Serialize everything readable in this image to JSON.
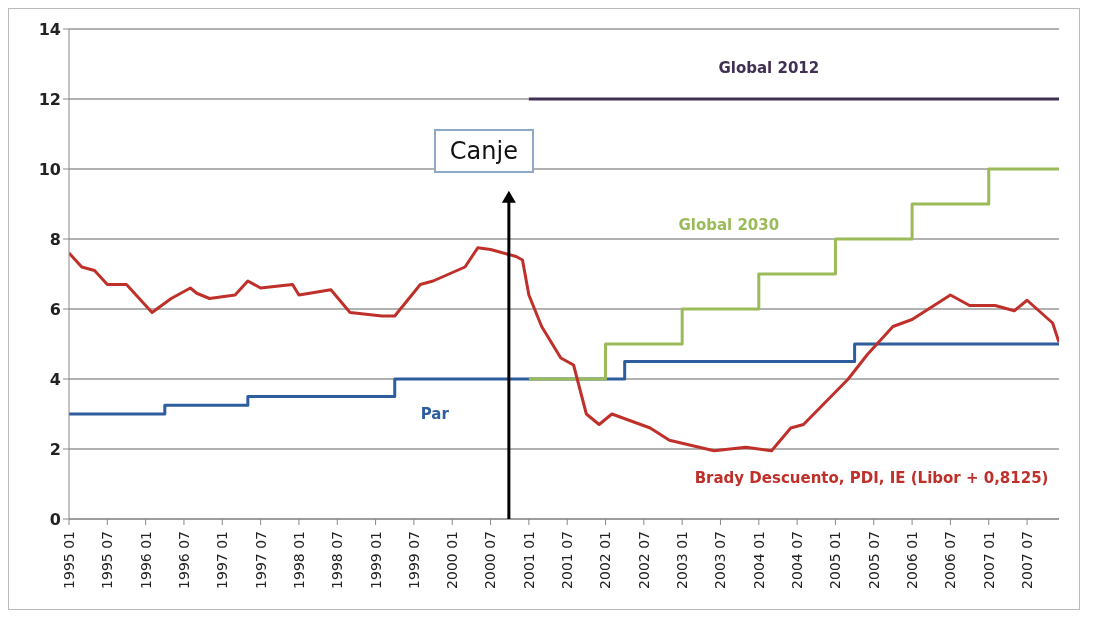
{
  "chart_data": {
    "type": "line",
    "annotations": [
      "Canje"
    ],
    "xlim": [
      "1995-01",
      "2007-12"
    ],
    "xticks": [
      {
        "value": "1995-01",
        "label": "1995 01"
      },
      {
        "value": "1995-07",
        "label": "1995 07"
      },
      {
        "value": "1996-01",
        "label": "1996 01"
      },
      {
        "value": "1996-07",
        "label": "1996 07"
      },
      {
        "value": "1997-01",
        "label": "1997 01"
      },
      {
        "value": "1997-07",
        "label": "1997 07"
      },
      {
        "value": "1998-01",
        "label": "1998 01"
      },
      {
        "value": "1998-07",
        "label": "1998 07"
      },
      {
        "value": "1999-01",
        "label": "1999 01"
      },
      {
        "value": "1999-07",
        "label": "1999 07"
      },
      {
        "value": "2000-01",
        "label": "2000 01"
      },
      {
        "value": "2000-07",
        "label": "2000 07"
      },
      {
        "value": "2001-01",
        "label": "2001 01"
      },
      {
        "value": "2001-07",
        "label": "2001 07"
      },
      {
        "value": "2002-01",
        "label": "2002 01"
      },
      {
        "value": "2002-07",
        "label": "2002 07"
      },
      {
        "value": "2003-01",
        "label": "2003 01"
      },
      {
        "value": "2003-07",
        "label": "2003 07"
      },
      {
        "value": "2004-01",
        "label": "2004 01"
      },
      {
        "value": "2004-07",
        "label": "2004 07"
      },
      {
        "value": "2005-01",
        "label": "2005 01"
      },
      {
        "value": "2005-07",
        "label": "2005 07"
      },
      {
        "value": "2006-01",
        "label": "2006 01"
      },
      {
        "value": "2006-07",
        "label": "2006 07"
      },
      {
        "value": "2007-01",
        "label": "2007 01"
      },
      {
        "value": "2007-07",
        "label": "2007 07"
      }
    ],
    "ylim": [
      0,
      14
    ],
    "yticks": [
      0,
      2,
      4,
      6,
      8,
      10,
      12,
      14
    ],
    "grid": "y",
    "marker": "none",
    "line_style": "solid",
    "series": [
      {
        "name": "Par",
        "type": "step",
        "color": "#2e5d9e",
        "x": [
          "1995-01",
          "1996-04",
          "1997-05",
          "1999-04",
          "2002-04",
          "2005-04",
          "2007-12"
        ],
        "values": [
          3,
          3.25,
          3.5,
          4,
          4.5,
          5,
          5
        ]
      },
      {
        "name": "Global 2030",
        "type": "step",
        "color": "#9bbb59",
        "x": [
          "2001-01",
          "2002-01",
          "2003-01",
          "2004-01",
          "2005-01",
          "2006-01",
          "2007-01",
          "2007-12"
        ],
        "values": [
          4,
          5,
          6,
          7,
          8,
          9,
          10,
          10
        ]
      },
      {
        "name": "Global 2012",
        "type": "step",
        "color": "#403152",
        "x": [
          "2001-01",
          "2007-12"
        ],
        "values": [
          12,
          12
        ]
      },
      {
        "name": "Brady Descuento, PDI, IE (Libor + 0,8125)",
        "type": "line",
        "color": "#c0302a",
        "x": [
          "1995-01",
          "1995-03",
          "1995-05",
          "1995-07",
          "1995-10",
          "1996-02",
          "1996-05",
          "1996-08",
          "1996-09",
          "1996-11",
          "1997-03",
          "1997-05",
          "1997-07",
          "1997-12",
          "1998-01",
          "1998-06",
          "1998-09",
          "1999-02",
          "1999-04",
          "1999-08",
          "1999-10",
          "2000-03",
          "2000-05",
          "2000-07",
          "2000-11",
          "2000-12",
          "2001-01",
          "2001-03",
          "2001-06",
          "2001-08",
          "2001-10",
          "2001-12",
          "2002-02",
          "2002-08",
          "2002-11",
          "2003-06",
          "2003-11",
          "2004-03",
          "2004-06",
          "2004-08",
          "2005-03",
          "2005-06",
          "2005-10",
          "2006-01",
          "2006-07",
          "2006-10",
          "2007-02",
          "2007-05",
          "2007-07",
          "2007-11",
          "2007-12"
        ],
        "values": [
          7.6,
          7.2,
          7.1,
          6.7,
          6.7,
          5.9,
          6.3,
          6.6,
          6.45,
          6.3,
          6.4,
          6.8,
          6.6,
          6.7,
          6.4,
          6.55,
          5.9,
          5.8,
          5.8,
          6.7,
          6.8,
          7.2,
          7.75,
          7.7,
          7.5,
          7.4,
          6.4,
          5.5,
          4.6,
          4.4,
          3.0,
          2.7,
          3.0,
          2.6,
          2.25,
          1.95,
          2.05,
          1.95,
          2.6,
          2.7,
          4.0,
          4.7,
          5.5,
          5.7,
          6.4,
          6.1,
          6.1,
          5.95,
          6.25,
          5.6,
          5.05
        ]
      }
    ]
  }
}
